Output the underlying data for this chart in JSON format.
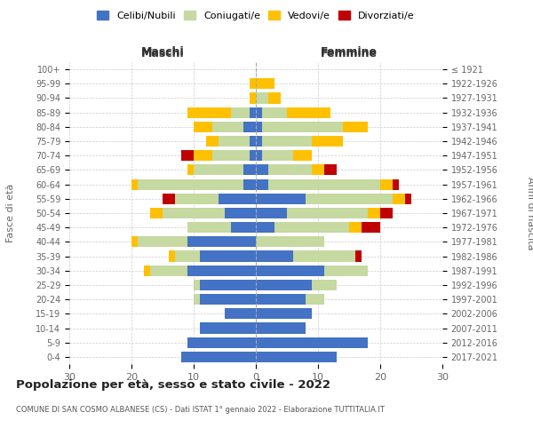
{
  "age_groups": [
    "0-4",
    "5-9",
    "10-14",
    "15-19",
    "20-24",
    "25-29",
    "30-34",
    "35-39",
    "40-44",
    "45-49",
    "50-54",
    "55-59",
    "60-64",
    "65-69",
    "70-74",
    "75-79",
    "80-84",
    "85-89",
    "90-94",
    "95-99",
    "100+"
  ],
  "birth_years": [
    "2017-2021",
    "2012-2016",
    "2007-2011",
    "2002-2006",
    "1997-2001",
    "1992-1996",
    "1987-1991",
    "1982-1986",
    "1977-1981",
    "1972-1976",
    "1967-1971",
    "1962-1966",
    "1957-1961",
    "1952-1956",
    "1947-1951",
    "1942-1946",
    "1937-1941",
    "1932-1936",
    "1927-1931",
    "1922-1926",
    "≤ 1921"
  ],
  "colors": {
    "celibe": "#4472c4",
    "coniugato": "#c5d9a0",
    "vedovo": "#ffc000",
    "divorziato": "#c00000"
  },
  "maschi": {
    "celibe": [
      12,
      11,
      9,
      5,
      9,
      9,
      11,
      9,
      11,
      4,
      5,
      6,
      2,
      2,
      1,
      1,
      2,
      1,
      0,
      0,
      0
    ],
    "coniugato": [
      0,
      0,
      0,
      0,
      1,
      1,
      6,
      4,
      8,
      7,
      10,
      7,
      17,
      8,
      6,
      5,
      5,
      3,
      0,
      0,
      0
    ],
    "vedovo": [
      0,
      0,
      0,
      0,
      0,
      0,
      1,
      1,
      1,
      0,
      2,
      0,
      1,
      1,
      3,
      2,
      3,
      7,
      1,
      1,
      0
    ],
    "divorziato": [
      0,
      0,
      0,
      0,
      0,
      0,
      0,
      0,
      0,
      0,
      0,
      2,
      0,
      0,
      2,
      0,
      0,
      0,
      0,
      0,
      0
    ]
  },
  "femmine": {
    "celibe": [
      13,
      18,
      8,
      9,
      8,
      9,
      11,
      6,
      0,
      3,
      5,
      8,
      2,
      2,
      1,
      1,
      1,
      1,
      0,
      0,
      0
    ],
    "coniugato": [
      0,
      0,
      0,
      0,
      3,
      4,
      7,
      10,
      11,
      12,
      13,
      14,
      18,
      7,
      5,
      8,
      13,
      4,
      2,
      0,
      0
    ],
    "vedovo": [
      0,
      0,
      0,
      0,
      0,
      0,
      0,
      0,
      0,
      2,
      2,
      2,
      2,
      2,
      3,
      5,
      4,
      7,
      2,
      3,
      0
    ],
    "divorziato": [
      0,
      0,
      0,
      0,
      0,
      0,
      0,
      1,
      0,
      3,
      2,
      1,
      1,
      2,
      0,
      0,
      0,
      0,
      0,
      0,
      0
    ]
  },
  "xlim": 30,
  "title": "Popolazione per età, sesso e stato civile - 2022",
  "subtitle": "COMUNE DI SAN COSMO ALBANESE (CS) - Dati ISTAT 1° gennaio 2022 - Elaborazione TUTTITALIA.IT",
  "xlabel_left": "Maschi",
  "xlabel_right": "Femmine",
  "ylabel_left": "Fasce di età",
  "ylabel_right": "Anni di nascita",
  "legend_labels": [
    "Celibi/Nubili",
    "Coniugati/e",
    "Vedovi/e",
    "Divorziati/e"
  ],
  "bg_color": "#ffffff",
  "grid_color": "#cccccc",
  "text_color": "#666666"
}
